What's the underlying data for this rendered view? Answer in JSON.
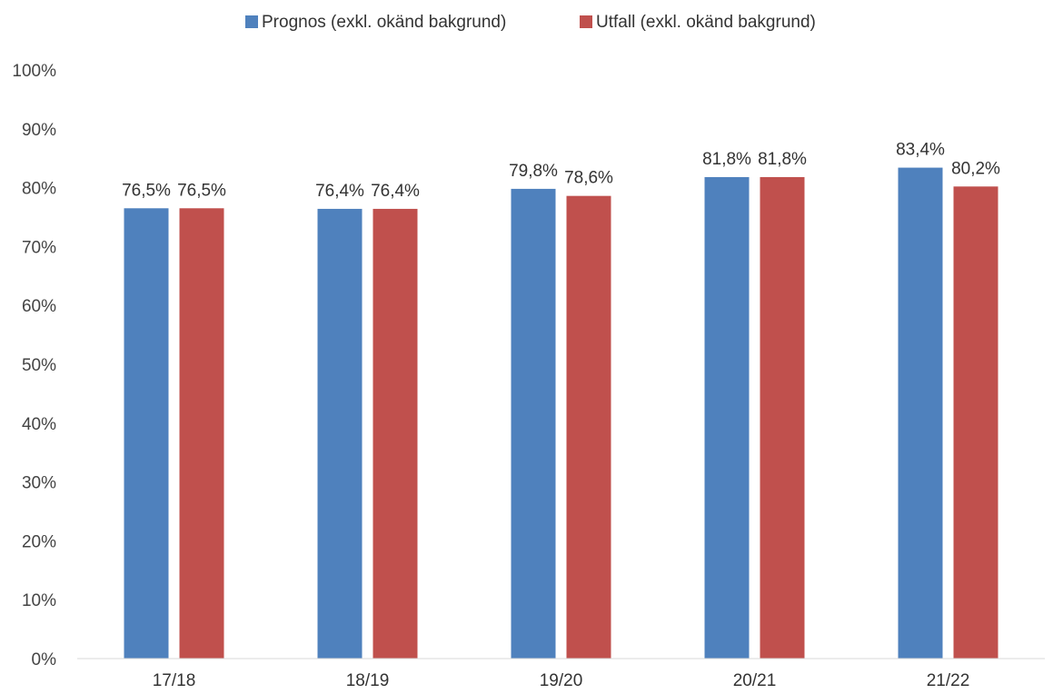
{
  "chart_data": {
    "type": "bar",
    "title": "",
    "xlabel": "",
    "ylabel": "",
    "categories": [
      "17/18",
      "18/19",
      "19/20",
      "20/21",
      "21/22"
    ],
    "ylim": [
      0,
      100
    ],
    "yticks": [
      0,
      10,
      20,
      30,
      40,
      50,
      60,
      70,
      80,
      90,
      100
    ],
    "ytick_labels": [
      "0%",
      "10%",
      "20%",
      "30%",
      "40%",
      "50%",
      "60%",
      "70%",
      "80%",
      "90%",
      "100%"
    ],
    "grid": false,
    "legend_position": "top-center",
    "series": [
      {
        "name": "Prognos (exkl. okänd bakgrund)",
        "color": "#4f81bd",
        "values": [
          76.5,
          76.4,
          79.8,
          81.8,
          83.4
        ],
        "labels": [
          "76,5%",
          "76,4%",
          "79,8%",
          "81,8%",
          "83,4%"
        ]
      },
      {
        "name": "Utfall (exkl. okänd bakgrund)",
        "color": "#c0504d",
        "values": [
          76.5,
          76.4,
          78.6,
          81.8,
          80.2
        ],
        "labels": [
          "76,5%",
          "76,4%",
          "78,6%",
          "81,8%",
          "80,2%"
        ]
      }
    ]
  }
}
